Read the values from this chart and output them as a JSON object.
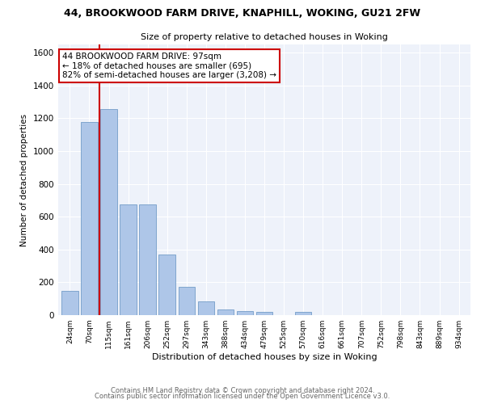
{
  "title1": "44, BROOKWOOD FARM DRIVE, KNAPHILL, WOKING, GU21 2FW",
  "title2": "Size of property relative to detached houses in Woking",
  "xlabel": "Distribution of detached houses by size in Woking",
  "ylabel": "Number of detached properties",
  "categories": [
    "24sqm",
    "70sqm",
    "115sqm",
    "161sqm",
    "206sqm",
    "252sqm",
    "297sqm",
    "343sqm",
    "388sqm",
    "434sqm",
    "479sqm",
    "525sqm",
    "570sqm",
    "616sqm",
    "661sqm",
    "707sqm",
    "752sqm",
    "798sqm",
    "843sqm",
    "889sqm",
    "934sqm"
  ],
  "values": [
    150,
    1175,
    1255,
    675,
    675,
    370,
    170,
    85,
    35,
    27,
    20,
    0,
    20,
    0,
    0,
    0,
    0,
    0,
    0,
    0,
    0
  ],
  "bar_color": "#aec6e8",
  "bar_edge_color": "#6090c0",
  "vline_x": 1.5,
  "vline_color": "#cc0000",
  "annotation_text": "44 BROOKWOOD FARM DRIVE: 97sqm\n← 18% of detached houses are smaller (695)\n82% of semi-detached houses are larger (3,208) →",
  "annotation_box_color": "#ffffff",
  "annotation_box_edge": "#cc0000",
  "ylim": [
    0,
    1650
  ],
  "yticks": [
    0,
    200,
    400,
    600,
    800,
    1000,
    1200,
    1400,
    1600
  ],
  "bg_color": "#eef2fa",
  "footer1": "Contains HM Land Registry data © Crown copyright and database right 2024.",
  "footer2": "Contains public sector information licensed under the Open Government Licence v3.0."
}
